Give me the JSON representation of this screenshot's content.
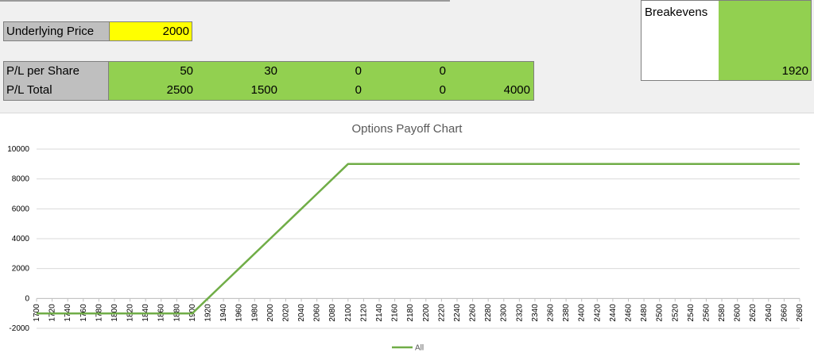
{
  "inputs": {
    "underlying_price_label": "Underlying Price",
    "underlying_price_value": "2000"
  },
  "pl_table": {
    "per_share_label": "P/L per Share",
    "total_label": "P/L Total",
    "per_share_values": [
      "50",
      "30",
      "0",
      "0",
      ""
    ],
    "total_values": [
      "2500",
      "1500",
      "0",
      "0",
      "4000"
    ]
  },
  "breakevens": {
    "label": "Breakevens",
    "value": "1920"
  },
  "colors": {
    "series": "#70ad47",
    "input_yellow": "#ffff00",
    "cell_green": "#92d050",
    "label_gray": "#bfbfbf"
  },
  "chart_data": {
    "type": "line",
    "title": "Options Payoff Chart",
    "xlabel": "",
    "ylabel": "",
    "ylim": [
      -2000,
      10000
    ],
    "yticks": [
      -2000,
      0,
      2000,
      4000,
      6000,
      8000,
      10000
    ],
    "x": [
      1700,
      1720,
      1740,
      1760,
      1780,
      1800,
      1820,
      1840,
      1860,
      1880,
      1900,
      1920,
      1940,
      1960,
      1980,
      2000,
      2020,
      2040,
      2060,
      2080,
      2100,
      2120,
      2140,
      2160,
      2180,
      2200,
      2220,
      2240,
      2260,
      2280,
      2300,
      2320,
      2340,
      2360,
      2380,
      2400,
      2420,
      2440,
      2460,
      2480,
      2500,
      2520,
      2540,
      2560,
      2580,
      2600,
      2620,
      2640,
      2660,
      2680
    ],
    "series": [
      {
        "name": "All",
        "values": [
          -1000,
          -1000,
          -1000,
          -1000,
          -1000,
          -1000,
          -1000,
          -1000,
          -1000,
          -1000,
          -1000,
          0,
          1000,
          2000,
          3000,
          4000,
          5000,
          6000,
          7000,
          8000,
          9000,
          9000,
          9000,
          9000,
          9000,
          9000,
          9000,
          9000,
          9000,
          9000,
          9000,
          9000,
          9000,
          9000,
          9000,
          9000,
          9000,
          9000,
          9000,
          9000,
          9000,
          9000,
          9000,
          9000,
          9000,
          9000,
          9000,
          9000,
          9000,
          9000
        ]
      }
    ],
    "grid": true,
    "legend": "bottom"
  }
}
